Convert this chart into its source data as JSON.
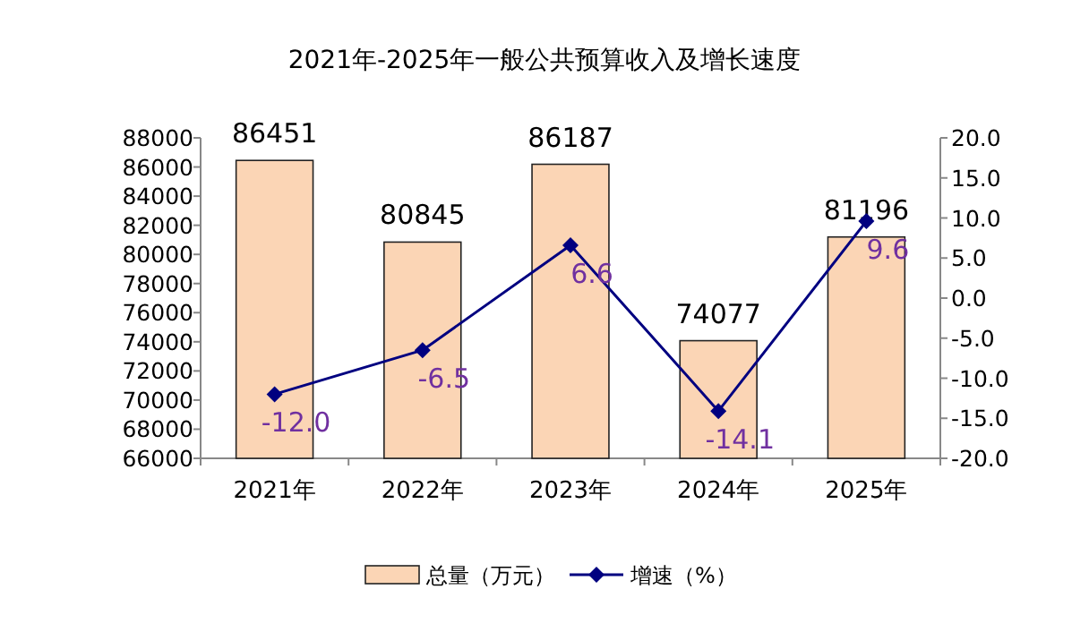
{
  "chart_data": {
    "type": "bar",
    "title": "2021年-2025年一般公共预算收入及增长速度",
    "categories": [
      "2021年",
      "2022年",
      "2023年",
      "2024年",
      "2025年"
    ],
    "series": [
      {
        "name": "总量（万元）",
        "color": "#fbd5b5",
        "values": [
          86451,
          80845,
          86187,
          74077,
          81196
        ],
        "value_labels": [
          "86451",
          "80845",
          "86187",
          "74077",
          "81196"
        ]
      },
      {
        "name": "增速（%）",
        "type": "line",
        "axis": "y2",
        "color": "#000080",
        "values": [
          -12.0,
          -6.5,
          6.6,
          -14.1,
          9.6
        ],
        "value_labels": [
          "-12.0",
          "-6.5",
          "6.6",
          "-14.1",
          "9.6"
        ]
      }
    ],
    "ylim": [
      66000,
      88000
    ],
    "yticks": [
      66000,
      68000,
      70000,
      72000,
      74000,
      76000,
      78000,
      80000,
      82000,
      84000,
      86000,
      88000
    ],
    "y2lim": [
      -20,
      20
    ],
    "y2ticks": [
      {
        "value": -20,
        "label": "-20.0"
      },
      {
        "value": -15,
        "label": "-15.0"
      },
      {
        "value": -10,
        "label": "-10.0"
      },
      {
        "value": -5,
        "label": "-5.0"
      },
      {
        "value": 0,
        "label": "0.0"
      },
      {
        "value": 5,
        "label": "5.0"
      },
      {
        "value": 10,
        "label": "10.0"
      },
      {
        "value": 15,
        "label": "15.0"
      },
      {
        "value": 20,
        "label": "20.0"
      }
    ],
    "marker": "diamond",
    "line_style": "solid",
    "legend": "bottom",
    "grid": false
  }
}
